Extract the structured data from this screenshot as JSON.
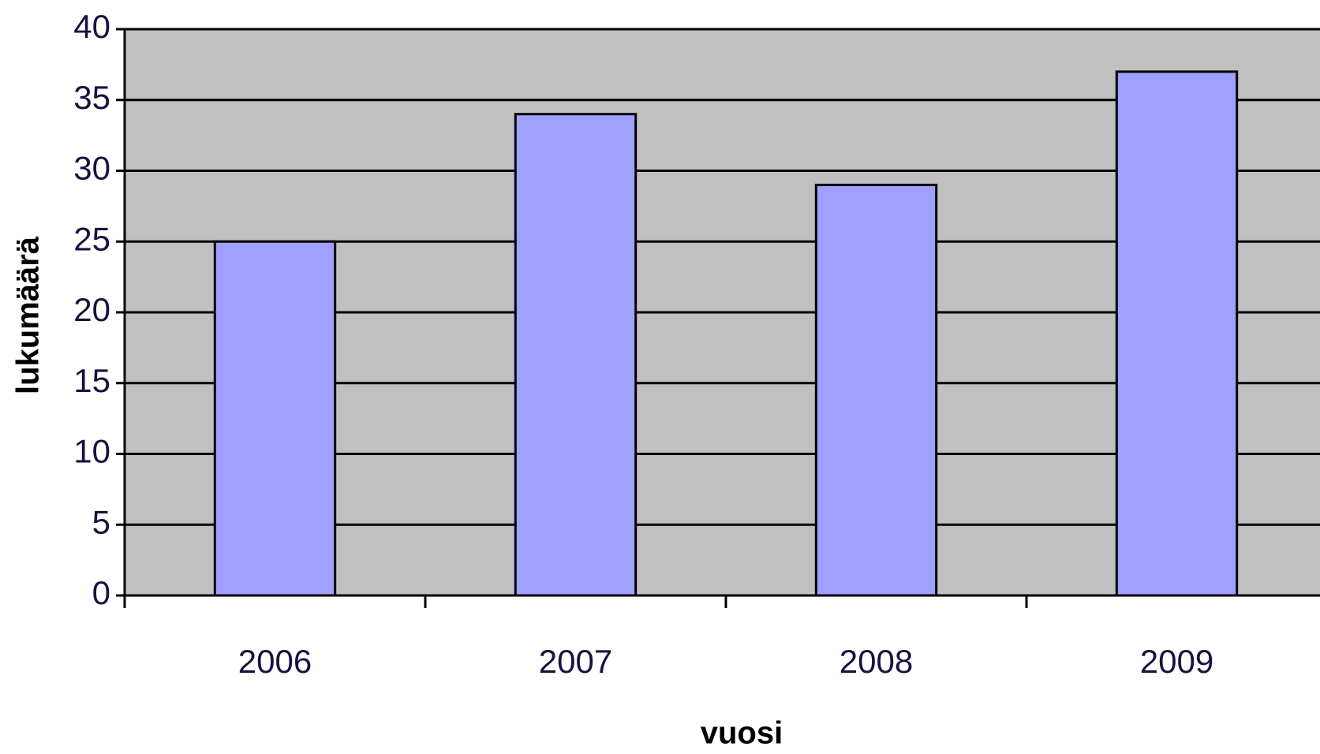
{
  "chart_data": {
    "type": "bar",
    "categories": [
      "2006",
      "2007",
      "2008",
      "2009"
    ],
    "values": [
      25,
      34,
      29,
      37
    ],
    "color": "#a0a0ff",
    "background": "#c0c0c0",
    "x_label": "vuosi",
    "y_label": "lukumäärä",
    "ylim": [
      0,
      40
    ],
    "yticks": [
      0,
      5,
      10,
      15,
      20,
      25,
      30,
      35,
      40
    ],
    "grid": true
  }
}
